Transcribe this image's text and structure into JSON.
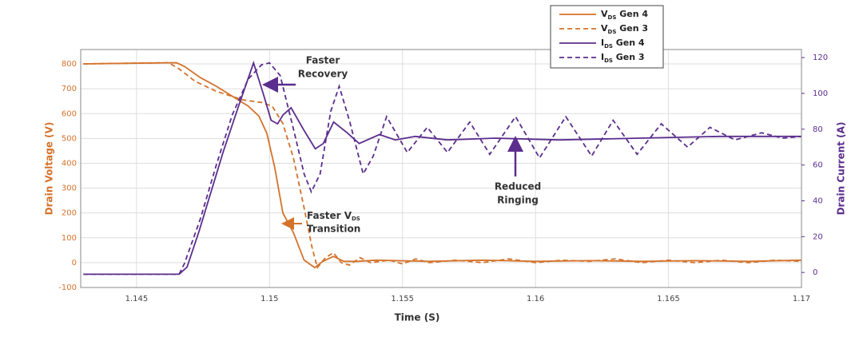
{
  "chart_data": {
    "type": "line",
    "xlabel": "Time (S)",
    "ylabel": "Drain Voltage (V)",
    "y2label": "Drain Current (A)",
    "xlim": [
      1.1429,
      1.17
    ],
    "xticks": [
      1.145,
      1.15,
      1.155,
      1.16,
      1.165,
      1.17
    ],
    "ylim": [
      -100,
      858
    ],
    "yticks": [
      -100,
      0,
      100,
      200,
      300,
      400,
      500,
      600,
      700,
      800
    ],
    "y2lim": [
      -8.4,
      124.5
    ],
    "y2ticks": [
      0,
      20,
      40,
      60,
      80,
      100,
      120
    ],
    "grid": true,
    "left_color": "#d4722a",
    "right_color": "#5b2d8e",
    "legend": "top-right",
    "series": [
      {
        "name": {
          "base": "V",
          "sub": "DS",
          "rest": " Gen 4"
        },
        "color": "#d4722a",
        "dashed": false,
        "axis": "y",
        "x": [
          1.143,
          1.1465,
          1.1468,
          1.1474,
          1.148,
          1.1486,
          1.1492,
          1.1496,
          1.1499,
          1.1502,
          1.1505,
          1.1509,
          1.1513,
          1.1517,
          1.152,
          1.1524,
          1.1528,
          1.1533,
          1.154,
          1.156,
          1.158,
          1.16,
          1.162,
          1.164,
          1.166,
          1.168,
          1.17
        ],
        "values": [
          800,
          805,
          790,
          745,
          710,
          670,
          630,
          590,
          520,
          380,
          200,
          120,
          10,
          -20,
          5,
          25,
          5,
          5,
          10,
          5,
          10,
          5,
          8,
          5,
          8,
          5,
          10
        ]
      },
      {
        "name": {
          "base": "V",
          "sub": "DS",
          "rest": " Gen 3"
        },
        "color": "#d4722a",
        "dashed": true,
        "axis": "y",
        "x": [
          1.143,
          1.1462,
          1.1466,
          1.1472,
          1.148,
          1.149,
          1.1497,
          1.1501,
          1.1505,
          1.1509,
          1.1513,
          1.1516,
          1.1518,
          1.1521,
          1.1524,
          1.1527,
          1.153,
          1.1534,
          1.1538,
          1.1545,
          1.155,
          1.1555,
          1.156,
          1.157,
          1.158,
          1.159,
          1.16,
          1.161,
          1.162,
          1.163,
          1.164,
          1.165,
          1.166,
          1.167,
          1.168,
          1.169,
          1.17
        ],
        "values": [
          800,
          805,
          780,
          730,
          690,
          655,
          645,
          630,
          560,
          420,
          220,
          60,
          -20,
          20,
          40,
          0,
          -10,
          20,
          0,
          10,
          -5,
          15,
          0,
          10,
          0,
          15,
          0,
          10,
          5,
          15,
          0,
          10,
          0,
          10,
          0,
          10,
          5
        ]
      },
      {
        "name": {
          "base": "I",
          "sub": "DS",
          "rest": " Gen 4"
        },
        "color": "#5b2d8e",
        "dashed": false,
        "axis": "y2",
        "x": [
          1.143,
          1.1466,
          1.1469,
          1.14735,
          1.14825,
          1.14886,
          1.1494,
          1.14976,
          1.15006,
          1.1503,
          1.15051,
          1.15081,
          1.15127,
          1.15172,
          1.15202,
          1.15241,
          1.15292,
          1.15337,
          1.15413,
          1.15473,
          1.15548,
          1.15669,
          1.15849,
          1.1609,
          1.16392,
          1.16693,
          1.17
        ],
        "values": [
          -1,
          -1,
          3,
          23,
          67,
          94,
          117,
          100,
          85,
          83,
          88,
          92,
          80,
          69,
          72,
          84,
          78,
          72,
          77,
          74,
          76,
          74,
          75,
          74,
          75,
          76,
          76
        ]
      },
      {
        "name": {
          "base": "I",
          "sub": "DS",
          "rest": " Gen 3"
        },
        "color": "#5b2d8e",
        "dashed": true,
        "axis": "y2",
        "x": [
          1.143,
          1.1466,
          1.1468,
          1.1474,
          1.148,
          1.1486,
          1.1492,
          1.1497,
          1.15,
          1.1504,
          1.1509,
          1.1513,
          1.15157,
          1.1519,
          1.1523,
          1.15262,
          1.153,
          1.15352,
          1.1539,
          1.1544,
          1.15518,
          1.15593,
          1.15669,
          1.15753,
          1.15828,
          1.15925,
          1.16015,
          1.16114,
          1.16211,
          1.16292,
          1.16382,
          1.16473,
          1.16572,
          1.16656,
          1.1675,
          1.1685,
          1.1693,
          1.17
        ],
        "values": [
          -1,
          -1,
          5,
          30,
          60,
          88,
          108,
          116,
          117,
          110,
          80,
          55,
          45,
          55,
          90,
          104,
          85,
          55,
          65,
          87,
          67,
          81,
          67,
          84,
          66,
          87,
          64,
          87,
          65,
          85,
          66,
          83,
          70,
          81,
          74,
          78,
          75,
          76
        ]
      }
    ],
    "annotations": [
      {
        "lines": [
          "Faster",
          "Recovery"
        ]
      },
      {
        "lines": [
          "Reduced",
          "Ringing"
        ]
      },
      {
        "lines": [
          {
            "base": "Faster V",
            "sub": "DS"
          },
          "Transition"
        ]
      }
    ]
  }
}
